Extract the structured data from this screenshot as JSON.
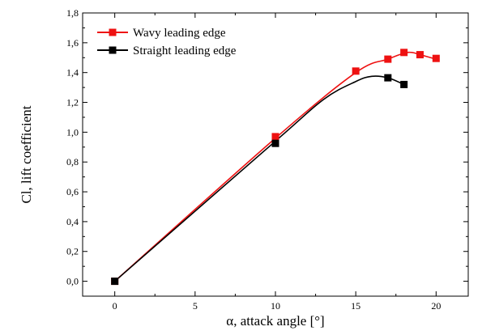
{
  "chart_data": {
    "type": "line",
    "xlabel": "α, attack angle [°]",
    "ylabel": "Cl, lift coefficient",
    "xlim": [
      -2,
      22
    ],
    "ylim": [
      -0.1,
      1.8
    ],
    "x_ticks": [
      0,
      5,
      10,
      15,
      20
    ],
    "y_ticks": [
      0.0,
      0.2,
      0.4,
      0.6,
      0.8,
      1.0,
      1.2,
      1.4,
      1.6,
      1.8
    ],
    "x_tick_labels": [
      "0",
      "5",
      "10",
      "15",
      "20"
    ],
    "y_tick_labels": [
      "0,0",
      "0,2",
      "0,4",
      "0,6",
      "0,8",
      "1,0",
      "1,2",
      "1,4",
      "1,6",
      "1,8"
    ],
    "grid": false,
    "legend_position": "top-left",
    "series": [
      {
        "name": "Wavy leading edge",
        "color": "#ee1111",
        "x": [
          0,
          10,
          15,
          17,
          18,
          19,
          20
        ],
        "y": [
          0.0,
          0.97,
          1.41,
          1.49,
          1.535,
          1.52,
          1.495
        ],
        "curve_x": [
          0,
          10,
          15,
          17,
          18,
          18.5,
          19,
          20
        ],
        "curve_y": [
          0.0,
          0.96,
          1.4,
          1.49,
          1.53,
          1.535,
          1.52,
          1.49
        ]
      },
      {
        "name": "Straight leading edge",
        "color": "#000000",
        "x": [
          0,
          10,
          17,
          18
        ],
        "y": [
          0.0,
          0.925,
          1.365,
          1.32
        ],
        "curve_x": [
          0,
          10,
          13,
          15,
          16,
          17,
          18
        ],
        "curve_y": [
          0.0,
          0.94,
          1.22,
          1.34,
          1.375,
          1.365,
          1.32
        ]
      }
    ]
  }
}
